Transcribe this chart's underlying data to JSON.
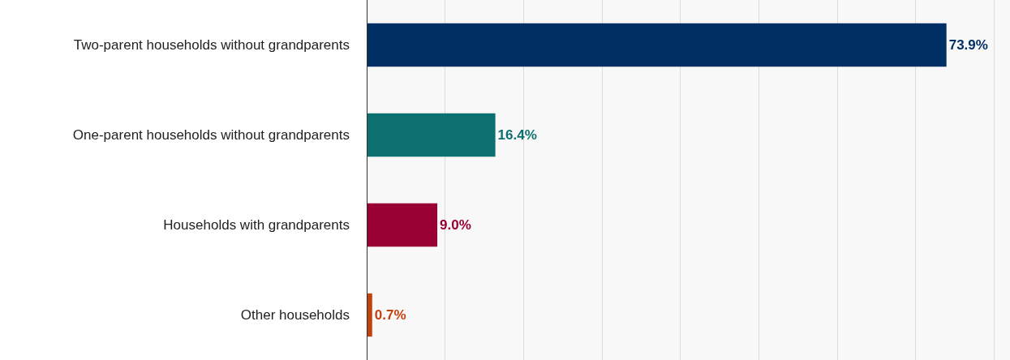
{
  "chart_data": {
    "type": "bar",
    "orientation": "horizontal",
    "categories": [
      "Two-parent households without grandparents",
      "One-parent households without grandparents",
      "Households with grandparents",
      "Other households"
    ],
    "values": [
      73.9,
      16.4,
      9.0,
      0.7
    ],
    "colors": [
      "#002f66",
      "#0d7070",
      "#990033",
      "#c2410c"
    ],
    "value_labels": [
      "73.9%",
      "16.4%",
      "9.0%",
      "0.7%"
    ],
    "xlim": [
      0,
      82
    ],
    "xticks": [
      {
        "value": 0,
        "label": null
      },
      {
        "value": 10,
        "label": null
      },
      {
        "value": 20,
        "label": null
      },
      {
        "value": 30,
        "label": null
      },
      {
        "value": 40,
        "label": null
      },
      {
        "value": 50,
        "label": null
      },
      {
        "value": 60,
        "label": null
      },
      {
        "value": 70,
        "label": null
      },
      {
        "value": 80,
        "label": null
      }
    ],
    "grid": "x",
    "tick_labels": "y"
  }
}
